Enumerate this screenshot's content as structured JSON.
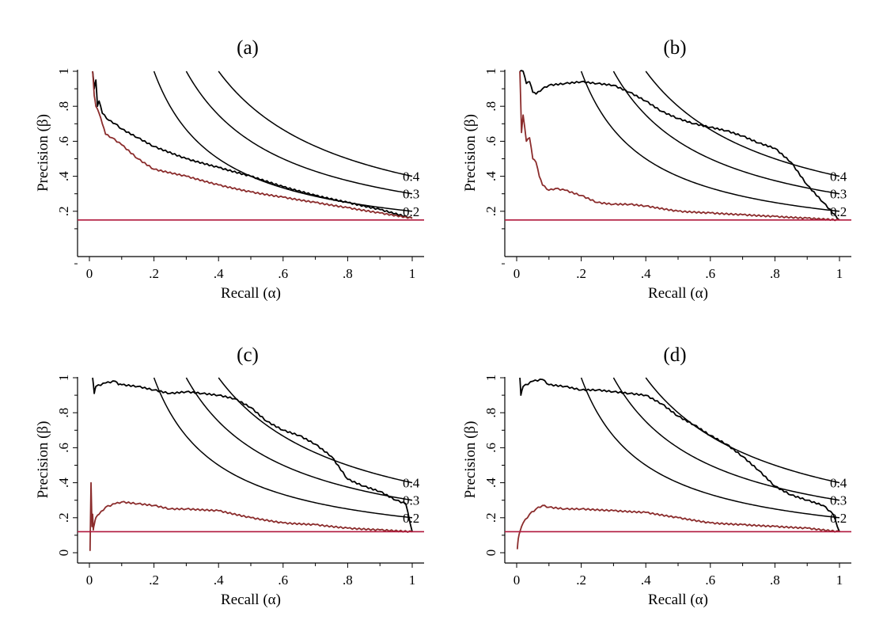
{
  "colors": {
    "model_curve": "#000000",
    "baseline_curve": "#8b2c2c",
    "reference_line": "#b0173b",
    "iso_curve": "#000000"
  },
  "chart_data": [
    {
      "type": "line",
      "title": "(a)",
      "xlabel": "Recall (α)",
      "ylabel": "Precision (β)",
      "xlim": [
        0,
        1
      ],
      "ylim": [
        0,
        1
      ],
      "x_ticks": [
        0,
        0.2,
        0.4,
        0.6,
        0.8,
        1
      ],
      "x_tick_labels": [
        "0",
        ".2",
        ".4",
        ".6",
        ".8",
        "1"
      ],
      "y_ticks": [
        0.2,
        0.4,
        0.6,
        0.8,
        1
      ],
      "y_tick_labels": [
        ".2",
        ".4",
        ".6",
        ".8",
        "1"
      ],
      "grid": false,
      "reference_line_y": 0.15,
      "iso_curves": [
        {
          "label": "0.2",
          "value": 0.2
        },
        {
          "label": "0.3",
          "value": 0.3
        },
        {
          "label": "0.4",
          "value": 0.4
        }
      ],
      "series": [
        {
          "x": [
            0.01,
            0.015,
            0.02,
            0.025,
            0.03,
            0.04,
            0.06,
            0.08,
            0.1,
            0.15,
            0.2,
            0.3,
            0.4,
            0.5,
            0.6,
            0.7,
            0.8,
            0.9,
            1.0
          ],
          "y": [
            1.0,
            0.9,
            0.95,
            0.8,
            0.83,
            0.76,
            0.72,
            0.7,
            0.67,
            0.62,
            0.57,
            0.5,
            0.45,
            0.4,
            0.34,
            0.29,
            0.25,
            0.21,
            0.16
          ]
        },
        {
          "x": [
            0.01,
            0.015,
            0.02,
            0.03,
            0.04,
            0.05,
            0.07,
            0.1,
            0.15,
            0.2,
            0.3,
            0.4,
            0.5,
            0.6,
            0.7,
            0.8,
            0.9,
            1.0
          ],
          "y": [
            1.0,
            0.86,
            0.8,
            0.76,
            0.7,
            0.64,
            0.62,
            0.58,
            0.5,
            0.44,
            0.4,
            0.35,
            0.31,
            0.28,
            0.25,
            0.22,
            0.19,
            0.16
          ]
        }
      ]
    },
    {
      "type": "line",
      "title": "(b)",
      "xlabel": "Recall (α)",
      "ylabel": "Precision (β)",
      "xlim": [
        0,
        1
      ],
      "ylim": [
        0,
        1
      ],
      "x_ticks": [
        0,
        0.2,
        0.4,
        0.6,
        0.8,
        1
      ],
      "x_tick_labels": [
        "0",
        ".2",
        ".4",
        ".6",
        ".8",
        "1"
      ],
      "y_ticks": [
        0.2,
        0.4,
        0.6,
        0.8,
        1
      ],
      "y_tick_labels": [
        ".2",
        ".4",
        ".6",
        ".8",
        "1"
      ],
      "grid": false,
      "reference_line_y": 0.15,
      "iso_curves": [
        {
          "label": "0.2",
          "value": 0.2
        },
        {
          "label": "0.3",
          "value": 0.3
        },
        {
          "label": "0.4",
          "value": 0.4
        }
      ],
      "series": [
        {
          "x": [
            0.01,
            0.02,
            0.03,
            0.04,
            0.05,
            0.06,
            0.08,
            0.1,
            0.15,
            0.2,
            0.25,
            0.3,
            0.35,
            0.4,
            0.45,
            0.5,
            0.55,
            0.6,
            0.65,
            0.7,
            0.75,
            0.8,
            0.85,
            0.9,
            0.95,
            1.0
          ],
          "y": [
            1.0,
            1.0,
            0.93,
            0.94,
            0.88,
            0.87,
            0.9,
            0.92,
            0.93,
            0.94,
            0.93,
            0.92,
            0.88,
            0.83,
            0.77,
            0.73,
            0.7,
            0.68,
            0.66,
            0.63,
            0.59,
            0.56,
            0.48,
            0.35,
            0.25,
            0.15
          ]
        },
        {
          "x": [
            0.01,
            0.015,
            0.02,
            0.03,
            0.04,
            0.05,
            0.06,
            0.07,
            0.08,
            0.1,
            0.12,
            0.15,
            0.2,
            0.25,
            0.3,
            0.35,
            0.4,
            0.5,
            0.6,
            0.7,
            0.8,
            0.9,
            1.0
          ],
          "y": [
            1.0,
            0.65,
            0.75,
            0.6,
            0.62,
            0.5,
            0.48,
            0.4,
            0.35,
            0.32,
            0.33,
            0.32,
            0.29,
            0.25,
            0.24,
            0.24,
            0.23,
            0.2,
            0.19,
            0.18,
            0.17,
            0.16,
            0.15
          ]
        }
      ]
    },
    {
      "type": "line",
      "title": "(c)",
      "xlabel": "Recall (α)",
      "ylabel": "Precision (β)",
      "xlim": [
        0,
        1
      ],
      "ylim": [
        0,
        1
      ],
      "x_ticks": [
        0,
        0.2,
        0.4,
        0.6,
        0.8,
        1
      ],
      "x_tick_labels": [
        "0",
        ".2",
        ".4",
        ".6",
        ".8",
        "1"
      ],
      "y_ticks": [
        0,
        0.2,
        0.4,
        0.6,
        0.8,
        1
      ],
      "y_tick_labels": [
        "0",
        ".2",
        ".4",
        ".6",
        ".8",
        "1"
      ],
      "grid": false,
      "reference_line_y": 0.12,
      "iso_curves": [
        {
          "label": "0.2",
          "value": 0.2
        },
        {
          "label": "0.3",
          "value": 0.3
        },
        {
          "label": "0.4",
          "value": 0.4
        }
      ],
      "series": [
        {
          "x": [
            0.01,
            0.015,
            0.02,
            0.05,
            0.08,
            0.09,
            0.1,
            0.15,
            0.2,
            0.25,
            0.3,
            0.35,
            0.4,
            0.45,
            0.5,
            0.55,
            0.6,
            0.65,
            0.7,
            0.75,
            0.8,
            0.85,
            0.9,
            0.95,
            0.98,
            1.0
          ],
          "y": [
            1.0,
            0.91,
            0.95,
            0.97,
            0.98,
            0.96,
            0.96,
            0.95,
            0.93,
            0.91,
            0.92,
            0.91,
            0.9,
            0.88,
            0.83,
            0.75,
            0.7,
            0.67,
            0.62,
            0.55,
            0.42,
            0.38,
            0.35,
            0.3,
            0.28,
            0.12
          ]
        },
        {
          "x": [
            0.002,
            0.005,
            0.008,
            0.01,
            0.012,
            0.015,
            0.02,
            0.03,
            0.05,
            0.08,
            0.1,
            0.15,
            0.2,
            0.25,
            0.3,
            0.4,
            0.5,
            0.6,
            0.7,
            0.8,
            0.9,
            1.0
          ],
          "y": [
            0.01,
            0.4,
            0.15,
            0.22,
            0.13,
            0.16,
            0.2,
            0.22,
            0.26,
            0.28,
            0.29,
            0.28,
            0.27,
            0.25,
            0.25,
            0.24,
            0.2,
            0.17,
            0.16,
            0.14,
            0.13,
            0.12
          ]
        }
      ]
    },
    {
      "type": "line",
      "title": "(d)",
      "xlabel": "Recall (α)",
      "ylabel": "Precision (β)",
      "xlim": [
        0,
        1
      ],
      "ylim": [
        0,
        1
      ],
      "x_ticks": [
        0,
        0.2,
        0.4,
        0.6,
        0.8,
        1
      ],
      "x_tick_labels": [
        "0",
        ".2",
        ".4",
        ".6",
        ".8",
        "1"
      ],
      "y_ticks": [
        0,
        0.2,
        0.4,
        0.6,
        0.8,
        1
      ],
      "y_tick_labels": [
        "0",
        ".2",
        ".4",
        ".6",
        ".8",
        "1"
      ],
      "grid": false,
      "reference_line_y": 0.12,
      "iso_curves": [
        {
          "label": "0.2",
          "value": 0.2
        },
        {
          "label": "0.3",
          "value": 0.3
        },
        {
          "label": "0.4",
          "value": 0.4
        }
      ],
      "series": [
        {
          "x": [
            0.01,
            0.013,
            0.02,
            0.05,
            0.08,
            0.1,
            0.15,
            0.2,
            0.25,
            0.3,
            0.35,
            0.4,
            0.45,
            0.5,
            0.55,
            0.6,
            0.65,
            0.7,
            0.75,
            0.8,
            0.85,
            0.9,
            0.95,
            0.98,
            1.0
          ],
          "y": [
            1.0,
            0.9,
            0.95,
            0.98,
            0.99,
            0.96,
            0.95,
            0.93,
            0.93,
            0.92,
            0.91,
            0.9,
            0.85,
            0.78,
            0.73,
            0.67,
            0.62,
            0.55,
            0.47,
            0.38,
            0.33,
            0.3,
            0.27,
            0.22,
            0.12
          ]
        },
        {
          "x": [
            0.002,
            0.005,
            0.01,
            0.02,
            0.04,
            0.06,
            0.08,
            0.1,
            0.15,
            0.2,
            0.3,
            0.4,
            0.5,
            0.6,
            0.7,
            0.8,
            0.9,
            1.0
          ],
          "y": [
            0.02,
            0.08,
            0.12,
            0.17,
            0.22,
            0.25,
            0.27,
            0.26,
            0.25,
            0.25,
            0.24,
            0.23,
            0.2,
            0.17,
            0.16,
            0.15,
            0.14,
            0.12
          ]
        }
      ]
    }
  ]
}
